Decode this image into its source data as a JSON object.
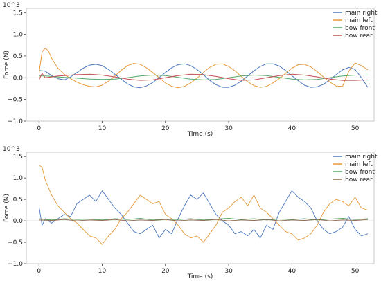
{
  "chart_data": [
    {
      "type": "line",
      "title": "",
      "xlabel": "Time (s)",
      "ylabel": "Force (N)",
      "scale_label": "10^3",
      "xlim": [
        -2,
        53
      ],
      "ylim": [
        -1.0,
        1.6
      ],
      "xticks": [
        "0",
        "10",
        "20",
        "30",
        "40",
        "50"
      ],
      "yticks": [
        "−1.0",
        "−0.5",
        "0.0",
        "0.5",
        "1.0",
        "1.5"
      ],
      "legend_position": "top-right",
      "grid": false,
      "series": [
        {
          "name": "main right",
          "color": "#4a76bd",
          "x": [
            0,
            1,
            2,
            3,
            4,
            5,
            6,
            7,
            8,
            9,
            10,
            11,
            12,
            13,
            14,
            15,
            16,
            17,
            18,
            19,
            20,
            21,
            22,
            23,
            24,
            25,
            26,
            27,
            28,
            29,
            30,
            31,
            32,
            33,
            34,
            35,
            36,
            37,
            38,
            39,
            40,
            41,
            42,
            43,
            44,
            45,
            46,
            47,
            48,
            49,
            50,
            51,
            52
          ],
          "values": [
            0.17,
            0.15,
            0.05,
            -0.02,
            -0.05,
            0.02,
            0.12,
            0.22,
            0.29,
            0.31,
            0.28,
            0.19,
            0.08,
            -0.03,
            -0.14,
            -0.21,
            -0.23,
            -0.19,
            -0.11,
            0.0,
            0.12,
            0.23,
            0.3,
            0.32,
            0.28,
            0.19,
            0.07,
            -0.06,
            -0.16,
            -0.22,
            -0.22,
            -0.17,
            -0.08,
            0.04,
            0.16,
            0.26,
            0.32,
            0.32,
            0.27,
            0.17,
            0.05,
            -0.07,
            -0.17,
            -0.22,
            -0.21,
            -0.15,
            -0.05,
            0.07,
            0.18,
            0.24,
            0.19,
            0.0,
            -0.22
          ]
        },
        {
          "name": "main left",
          "color": "#e69a3a",
          "x": [
            0,
            0.5,
            1,
            1.5,
            2,
            3,
            4,
            5,
            6,
            7,
            8,
            9,
            10,
            11,
            12,
            13,
            14,
            15,
            16,
            17,
            18,
            19,
            20,
            21,
            22,
            23,
            24,
            25,
            26,
            27,
            28,
            29,
            30,
            31,
            32,
            33,
            34,
            35,
            36,
            37,
            38,
            39,
            40,
            41,
            42,
            43,
            44,
            45,
            46,
            47,
            48,
            49,
            50,
            51,
            52
          ],
          "values": [
            0.1,
            0.6,
            0.68,
            0.62,
            0.45,
            0.22,
            0.08,
            -0.02,
            -0.1,
            -0.16,
            -0.2,
            -0.21,
            -0.17,
            -0.08,
            0.04,
            0.17,
            0.28,
            0.33,
            0.31,
            0.23,
            0.12,
            0.0,
            -0.12,
            -0.2,
            -0.23,
            -0.2,
            -0.12,
            -0.01,
            0.12,
            0.24,
            0.31,
            0.32,
            0.26,
            0.16,
            0.03,
            -0.09,
            -0.18,
            -0.22,
            -0.2,
            -0.12,
            -0.02,
            0.1,
            0.22,
            0.3,
            0.31,
            0.25,
            0.14,
            0.02,
            -0.1,
            -0.19,
            -0.2,
            0.15,
            0.34,
            0.28,
            0.18
          ]
        },
        {
          "name": "bow front",
          "color": "#55a868",
          "x": [
            0,
            1,
            2,
            3,
            4,
            5,
            6,
            8,
            10,
            12,
            14,
            16,
            18,
            20,
            22,
            24,
            26,
            28,
            30,
            32,
            34,
            36,
            38,
            40,
            42,
            44,
            46,
            48,
            50,
            52
          ],
          "values": [
            0.04,
            0.04,
            0.03,
            0.02,
            0.01,
            0.0,
            -0.01,
            -0.03,
            -0.04,
            -0.03,
            0.0,
            0.04,
            0.06,
            0.05,
            0.01,
            -0.03,
            -0.05,
            -0.04,
            0.0,
            0.04,
            0.06,
            0.05,
            0.01,
            -0.03,
            -0.05,
            -0.04,
            0.0,
            0.04,
            0.06,
            0.06
          ]
        },
        {
          "name": "bow rear",
          "color": "#c44e52",
          "x": [
            0,
            0.5,
            1,
            2,
            3,
            4,
            5,
            6,
            8,
            10,
            12,
            14,
            16,
            18,
            20,
            22,
            24,
            26,
            28,
            30,
            32,
            34,
            36,
            38,
            40,
            42,
            44,
            46,
            48,
            50,
            52
          ],
          "values": [
            -0.05,
            0.1,
            0.0,
            0.02,
            0.04,
            0.05,
            0.06,
            0.07,
            0.08,
            0.06,
            0.02,
            -0.03,
            -0.06,
            -0.05,
            0.0,
            0.05,
            0.08,
            0.07,
            0.03,
            -0.02,
            -0.06,
            -0.05,
            0.0,
            0.05,
            0.08,
            0.06,
            0.02,
            -0.03,
            -0.06,
            -0.06,
            -0.05
          ]
        }
      ]
    },
    {
      "type": "line",
      "title": "",
      "xlabel": "Time (s)",
      "ylabel": "Force (N)",
      "scale_label": "10^3",
      "xlim": [
        -2,
        53
      ],
      "ylim": [
        -1.0,
        1.6
      ],
      "xticks": [
        "0",
        "10",
        "20",
        "30",
        "40",
        "50"
      ],
      "yticks": [
        "−1.0",
        "−0.5",
        "0.0",
        "0.5",
        "1.0",
        "1.5"
      ],
      "legend_position": "top-right",
      "grid": false,
      "series": [
        {
          "name": "main right",
          "color": "#4a76bd",
          "x": [
            0,
            0.5,
            1,
            2,
            3,
            4,
            5,
            6,
            7,
            8,
            9,
            10,
            11,
            12,
            13,
            14,
            15,
            16,
            17,
            18,
            19,
            20,
            21,
            22,
            23,
            24,
            25,
            26,
            27,
            28,
            29,
            30,
            31,
            32,
            33,
            34,
            35,
            36,
            37,
            38,
            39,
            40,
            41,
            42,
            43,
            44,
            45,
            46,
            47,
            48,
            49,
            50,
            51,
            52
          ],
          "values": [
            0.33,
            -0.1,
            0.05,
            -0.05,
            0.05,
            0.15,
            0.1,
            0.4,
            0.5,
            0.6,
            0.45,
            0.7,
            0.5,
            0.3,
            0.15,
            -0.05,
            -0.25,
            -0.3,
            -0.2,
            -0.1,
            -0.4,
            -0.2,
            -0.3,
            0.05,
            0.35,
            0.6,
            0.5,
            0.65,
            0.4,
            0.15,
            0.0,
            -0.1,
            -0.3,
            -0.25,
            -0.35,
            -0.2,
            -0.4,
            -0.1,
            -0.2,
            0.2,
            0.45,
            0.7,
            0.55,
            0.45,
            0.3,
            0.0,
            -0.2,
            -0.3,
            -0.25,
            -0.15,
            0.1,
            -0.2,
            -0.35,
            -0.3
          ]
        },
        {
          "name": "main left",
          "color": "#e69a3a",
          "x": [
            0,
            0.5,
            1,
            2,
            3,
            4,
            5,
            6,
            7,
            8,
            9,
            10,
            11,
            12,
            13,
            14,
            15,
            16,
            17,
            18,
            19,
            20,
            21,
            22,
            23,
            24,
            25,
            26,
            27,
            28,
            29,
            30,
            31,
            32,
            33,
            34,
            35,
            36,
            37,
            38,
            39,
            40,
            41,
            42,
            43,
            44,
            45,
            46,
            47,
            48,
            49,
            50,
            51,
            52
          ],
          "values": [
            1.3,
            1.25,
            0.95,
            0.6,
            0.35,
            0.2,
            0.05,
            -0.05,
            -0.2,
            -0.35,
            -0.4,
            -0.55,
            -0.35,
            -0.2,
            0.05,
            0.2,
            0.4,
            0.6,
            0.5,
            0.4,
            0.45,
            0.15,
            0.05,
            -0.1,
            -0.3,
            -0.4,
            -0.35,
            -0.5,
            -0.3,
            -0.1,
            0.2,
            0.3,
            0.45,
            0.55,
            0.35,
            0.6,
            0.3,
            0.2,
            0.05,
            -0.1,
            -0.25,
            -0.3,
            -0.45,
            -0.4,
            -0.3,
            -0.1,
            0.2,
            0.4,
            0.5,
            0.45,
            0.35,
            0.55,
            0.3,
            0.25
          ]
        },
        {
          "name": "bow front",
          "color": "#55a868",
          "x": [
            0,
            2,
            4,
            6,
            8,
            10,
            12,
            14,
            16,
            18,
            20,
            22,
            24,
            26,
            28,
            30,
            32,
            34,
            36,
            38,
            40,
            42,
            44,
            46,
            48,
            50,
            52
          ],
          "values": [
            0.05,
            0.02,
            0.05,
            0.03,
            0.04,
            0.02,
            0.05,
            0.03,
            0.06,
            0.02,
            0.04,
            0.03,
            0.05,
            0.02,
            0.04,
            0.06,
            0.03,
            0.05,
            0.02,
            0.04,
            0.03,
            0.05,
            0.02,
            0.04,
            0.06,
            0.03,
            0.05
          ]
        },
        {
          "name": "bow rear",
          "color": "#8c6a4c",
          "x": [
            0,
            2,
            4,
            6,
            8,
            10,
            12,
            14,
            16,
            18,
            20,
            22,
            24,
            26,
            28,
            30,
            32,
            34,
            36,
            38,
            40,
            42,
            44,
            46,
            48,
            50,
            52
          ],
          "values": [
            0.02,
            0.01,
            0.03,
            0.0,
            0.02,
            0.01,
            0.03,
            0.0,
            0.02,
            0.01,
            0.03,
            0.0,
            0.02,
            0.01,
            0.03,
            0.0,
            0.02,
            0.01,
            0.03,
            0.0,
            0.02,
            0.01,
            0.03,
            0.0,
            0.02,
            0.01,
            0.03
          ]
        }
      ]
    }
  ]
}
